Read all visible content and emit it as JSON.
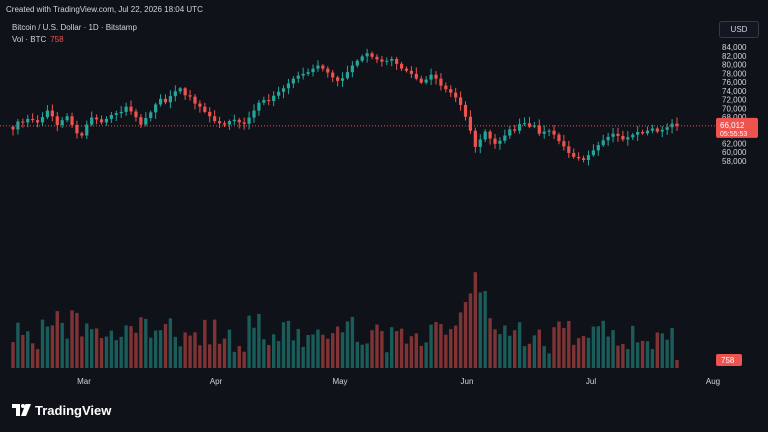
{
  "header": {
    "created_with": "Created with TradingView.com, Jul 22, 2026 18:04 UTC",
    "symbol_line": "Bitcoin / U.S. Dollar · 1D · Bitstamp",
    "vol_label": "Vol · BTC",
    "vol_value": "758"
  },
  "currency_button": "USD",
  "price_tag": {
    "price": "66,012",
    "countdown": "05:55:53"
  },
  "volume_tag": "758",
  "brand": "TradingView",
  "colors": {
    "up": "#26a69a",
    "down": "#ef5350",
    "background": "#0f1218"
  },
  "chart_data": {
    "type": "candlestick",
    "symbol": "Bitcoin / U.S. Dollar",
    "interval": "1D",
    "exchange": "Bitstamp",
    "ylim": [
      56000,
      85000
    ],
    "y_ticks": [
      "58,000",
      "60,000",
      "62,000",
      "64,000",
      "66,000",
      "68,000",
      "70,000",
      "72,000",
      "74,000",
      "76,000",
      "78,000",
      "80,000",
      "82,000",
      "84,000"
    ],
    "x_ticks": [
      "Mar",
      "Apr",
      "May",
      "Jun",
      "Jul",
      "Aug"
    ],
    "last_price": 66012,
    "last_volume": 758,
    "close_series_approx": [
      65200,
      67000,
      66800,
      67600,
      67300,
      66800,
      68000,
      69500,
      68200,
      66200,
      67300,
      68200,
      66200,
      64300,
      63800,
      66300,
      67900,
      67500,
      66800,
      67600,
      68500,
      68900,
      69200,
      70400,
      69300,
      68000,
      66300,
      67800,
      69100,
      70900,
      72200,
      71400,
      72800,
      73900,
      74600,
      73000,
      72700,
      71100,
      70400,
      69200,
      68200,
      67100,
      66600,
      66300,
      67100,
      67400,
      66800,
      66500,
      67900,
      69500,
      71300,
      71900,
      71700,
      72900,
      73800,
      74600,
      75700,
      76800,
      77500,
      77900,
      78300,
      79100,
      79800,
      79100,
      78200,
      77100,
      76300,
      76900,
      78300,
      79800,
      80900,
      81900,
      82600,
      81800,
      81200,
      80700,
      80900,
      81300,
      80200,
      79100,
      78600,
      77900,
      76800,
      75900,
      76600,
      77700,
      76800,
      75200,
      74400,
      73600,
      72500,
      70800,
      68100,
      64900,
      61200,
      62900,
      64700,
      63100,
      61900,
      62600,
      63800,
      65200,
      64900,
      66400,
      66600,
      65800,
      66100,
      64200,
      64700,
      64900,
      64000,
      62500,
      61300,
      59800,
      58900,
      58600,
      58200,
      59300,
      60400,
      61600,
      62700,
      63500,
      64200,
      63700,
      62900,
      63400,
      64000,
      64600,
      64300,
      64900,
      65400,
      64700,
      65100,
      65700,
      66500,
      66012
    ]
  }
}
